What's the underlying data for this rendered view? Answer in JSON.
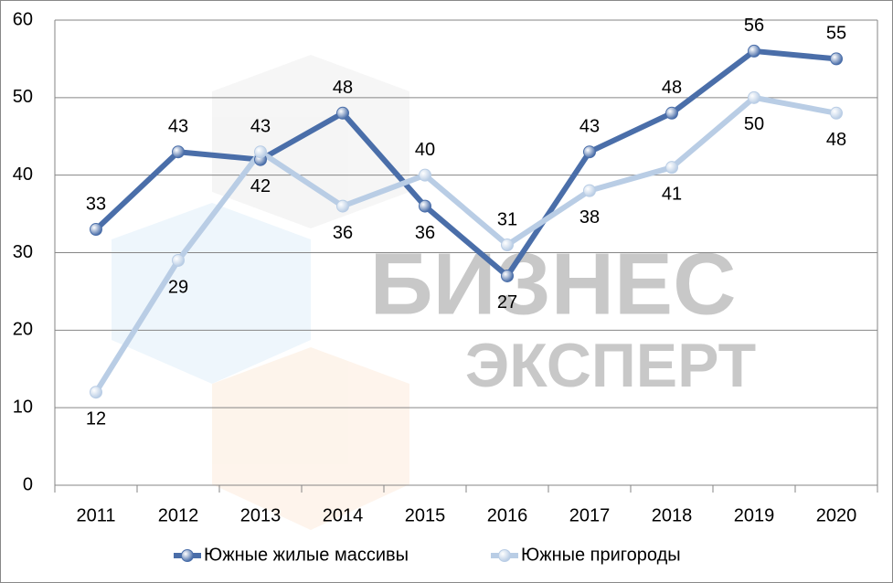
{
  "chart_data": {
    "type": "line",
    "watermark": [
      "БИЗНЕС",
      "ЭКСПЕРТ"
    ],
    "categories": [
      "2011",
      "2012",
      "2013",
      "2014",
      "2015",
      "2016",
      "2017",
      "2018",
      "2019",
      "2020"
    ],
    "series": [
      {
        "name": "Южные жилые массивы",
        "color": "#4a6ea9",
        "values": [
          33,
          43,
          42,
          48,
          36,
          27,
          43,
          48,
          56,
          55
        ]
      },
      {
        "name": "Южные пригороды",
        "color": "#b9cde5",
        "values": [
          12,
          29,
          43,
          36,
          40,
          31,
          38,
          41,
          50,
          48
        ]
      }
    ],
    "ylim": [
      0,
      60
    ],
    "yticks": [
      0,
      10,
      20,
      30,
      40,
      50,
      60
    ],
    "grid": true,
    "legend": "bottom"
  }
}
